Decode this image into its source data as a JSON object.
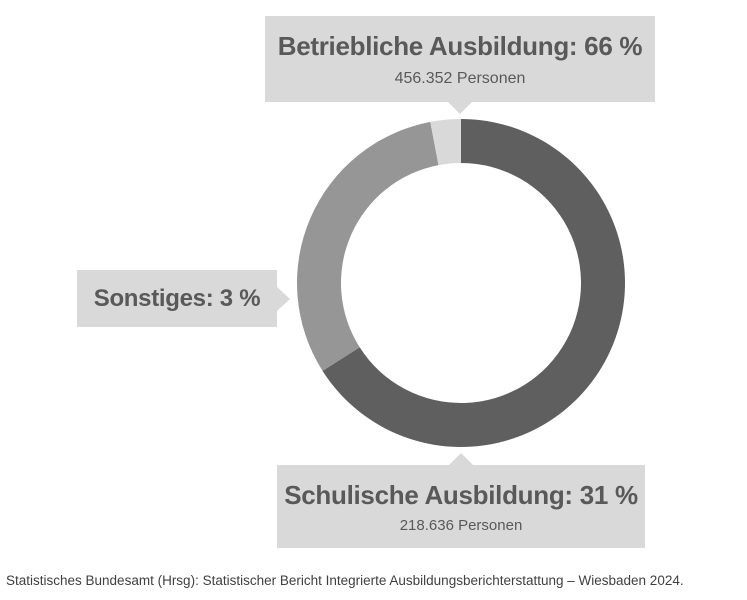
{
  "chart_data": {
    "type": "pie",
    "donut": true,
    "title": "",
    "categories": [
      "Betriebliche Ausbildung",
      "Schulische Ausbildung",
      "Sonstiges"
    ],
    "values": [
      66,
      31,
      3
    ],
    "unit": "%",
    "colors": [
      "#5f5f5f",
      "#969696",
      "#d9d9d9"
    ],
    "callouts": [
      {
        "label": "Betriebliche Ausbildung: 66 %",
        "sub": "456.352 Personen"
      },
      {
        "label": "Schulische Ausbildung: 31 %",
        "sub": "218.636 Personen"
      },
      {
        "label": "Sonstiges: 3 %",
        "sub": ""
      }
    ],
    "legend": "none"
  },
  "source": "Statistisches Bundesamt (Hrsg): Statistischer Bericht Integrierte Ausbildungsberichterstattung – Wiesbaden 2024."
}
